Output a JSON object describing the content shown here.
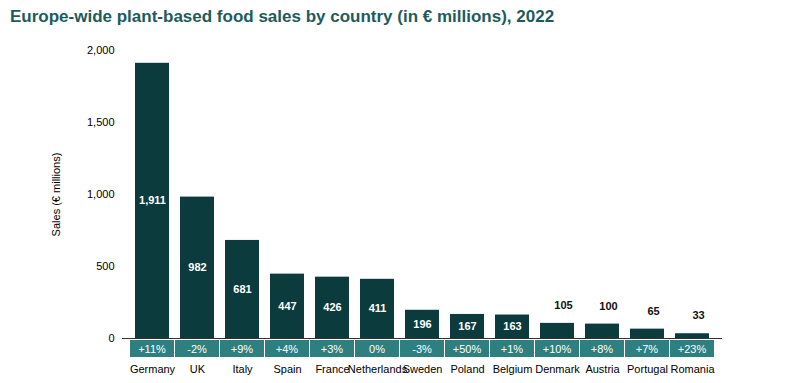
{
  "chart_data": {
    "type": "bar",
    "title": "Europe-wide plant-based food sales by country (in € millions), 2022",
    "y_label": "Sales (€ millions)",
    "categories": [
      "Germany",
      "UK",
      "Italy",
      "Spain",
      "France",
      "Netherlands",
      "Sweden",
      "Poland",
      "Belgium",
      "Denmark",
      "Austria",
      "Portugal",
      "Romania"
    ],
    "values": [
      1911,
      982,
      681,
      447,
      426,
      411,
      196,
      167,
      163,
      105,
      100,
      65,
      33
    ],
    "value_labels": [
      "1,911",
      "982",
      "681",
      "447",
      "426",
      "411",
      "196",
      "167",
      "163",
      "105",
      "100",
      "65",
      "33"
    ],
    "change_labels": [
      "+11%",
      "-2%",
      "+9%",
      "+4%",
      "+3%",
      "0%",
      "-3%",
      "+50%",
      "+1%",
      "+10%",
      "+8%",
      "+7%",
      "+23%"
    ],
    "color": "#0b3b3c",
    "ylim": [
      0,
      2000
    ],
    "yticks": [
      0,
      500,
      {
        "value": 1000,
        "label": "1,000"
      },
      {
        "value": 1500,
        "label": "1,500"
      },
      {
        "value": 2000,
        "label": "2,000"
      }
    ],
    "grid": false,
    "data_labels": true
  }
}
